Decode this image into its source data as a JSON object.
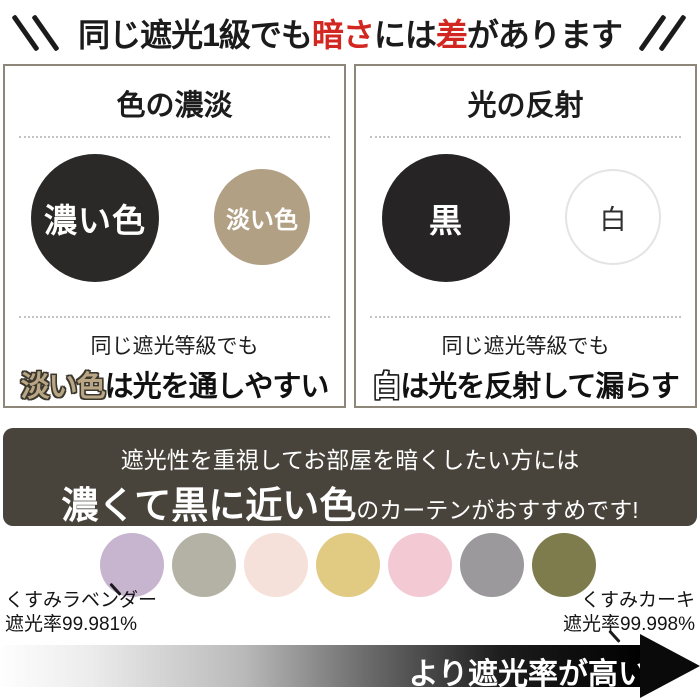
{
  "title": {
    "part1": "同じ遮光1級でも",
    "em1": "暗さ",
    "part2": "には",
    "em2": "差",
    "part3": "があります"
  },
  "panels": [
    {
      "header": "色の濃淡",
      "big_circle_label": "濃い色",
      "small_circle_label": "淡い色",
      "note_line1": "同じ遮光等級でも",
      "note_keyword": "淡い色",
      "note_rest": "は光を通しやすい"
    },
    {
      "header": "光の反射",
      "big_circle_label": "黒",
      "small_circle_label": "白",
      "note_line1": "同じ遮光等級でも",
      "note_keyword": "白",
      "note_rest": "は光を反射して漏らす"
    }
  ],
  "banner": {
    "line1": "遮光性を重視してお部屋を暗くしたい方には",
    "line2_emphasis": "濃くて黒に近い色",
    "line2_rest": "のカーテンがおすすめです!"
  },
  "swatches": {
    "colors": [
      "#c7b4ce",
      "#b3b2a4",
      "#f6e1da",
      "#e1ca82",
      "#f3c9d4",
      "#9b999b",
      "#7e7b4c"
    ],
    "left_label": {
      "name": "くすみラベンダー",
      "rate": "遮光率99.981%"
    },
    "right_label": {
      "name": "くすみカーキ",
      "rate": "遮光率99.998%"
    }
  },
  "gradient_arrow": {
    "label": "より遮光率が高い"
  },
  "colors": {
    "accent_red": "#d22721",
    "banner_bg": "#48443b",
    "box_border": "#8d8779",
    "dark_circle": "#2a2927",
    "tan_circle": "#b2a084",
    "black_circle": "#262424"
  }
}
